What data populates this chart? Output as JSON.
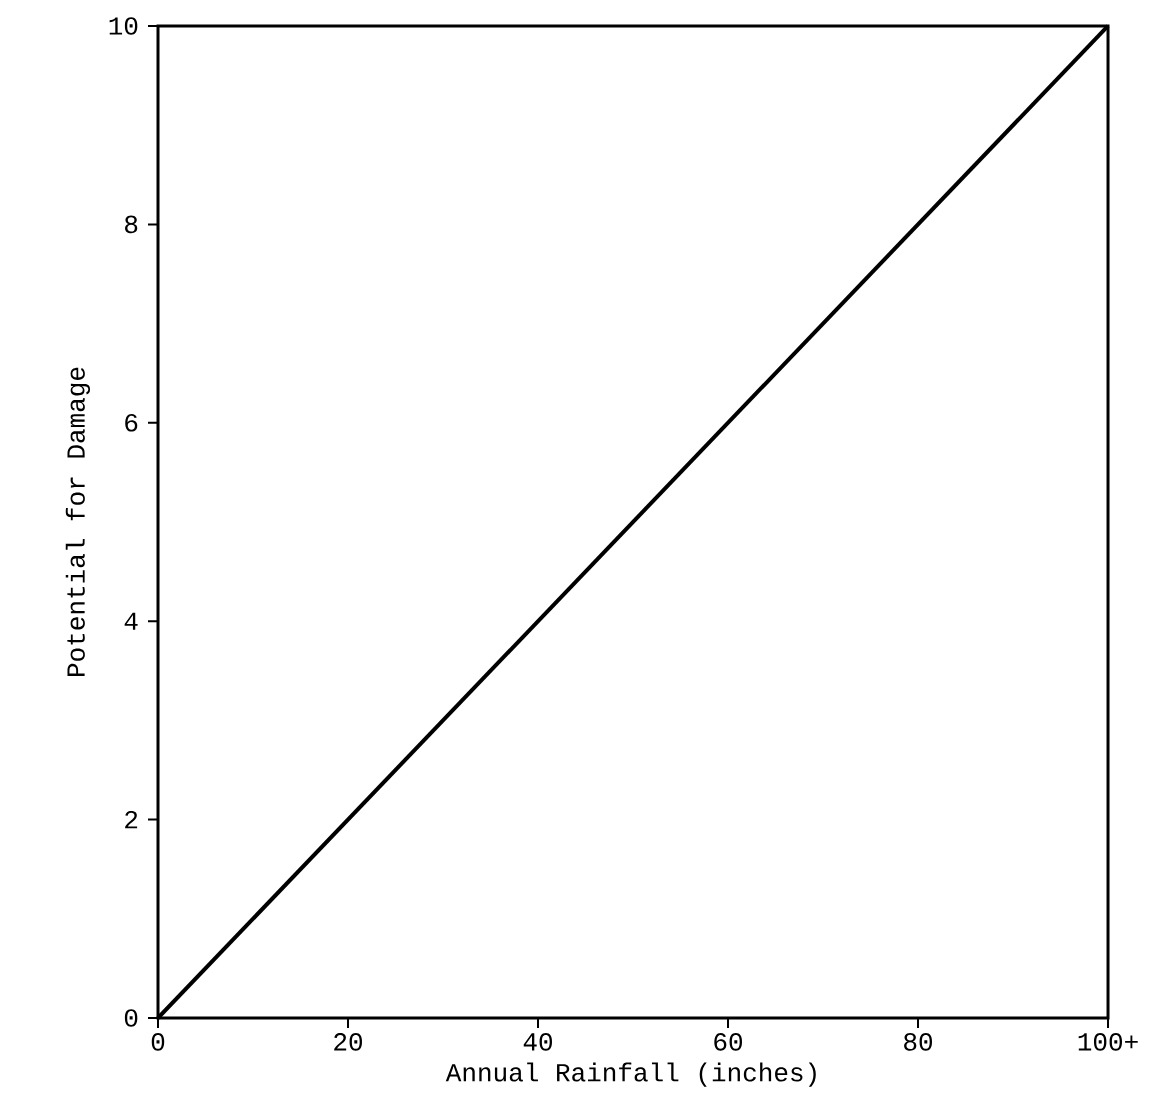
{
  "chart_data": {
    "type": "line",
    "xlabel": "Annual Rainfall (inches)",
    "ylabel": "Potential for Damage",
    "x": [
      0,
      100
    ],
    "series": [
      {
        "color": "#000000",
        "values": [
          0,
          10
        ]
      }
    ],
    "xlim": [
      0,
      100
    ],
    "ylim": [
      0,
      10
    ],
    "xticks": [
      0,
      20,
      40,
      60,
      80,
      {
        "value": 100,
        "label": "100+"
      }
    ],
    "yticks": [
      0,
      2,
      4,
      6,
      8,
      10
    ],
    "grid": false,
    "marker": "none",
    "line_style": "solid"
  }
}
